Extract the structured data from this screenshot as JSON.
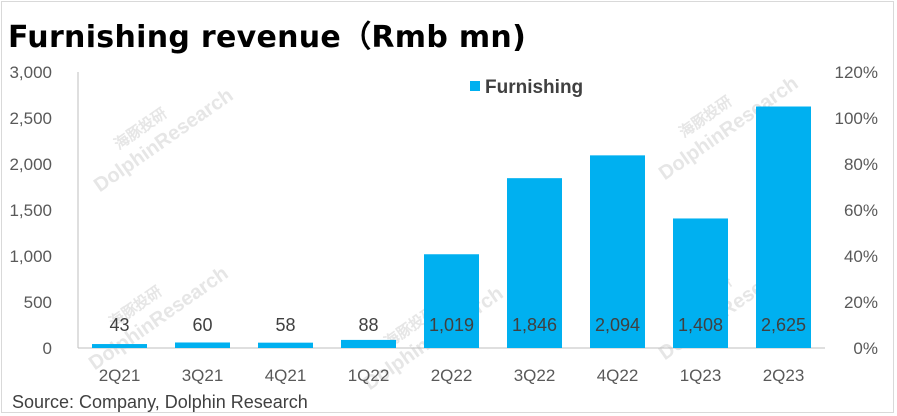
{
  "title": "Furnishing revenue（Rmb mn)",
  "source": "Source: Company, Dolphin Research",
  "watermark": {
    "cn": "海豚投研",
    "en": "DolphinResearch"
  },
  "colors": {
    "bar": "#00b0f0",
    "axis_text": "#595959",
    "label_text": "#404040"
  },
  "chart_data": {
    "type": "bar",
    "categories": [
      "2Q21",
      "3Q21",
      "4Q21",
      "1Q22",
      "2Q22",
      "3Q22",
      "4Q22",
      "1Q23",
      "2Q23"
    ],
    "series": [
      {
        "name": "Furnishing",
        "values": [
          43,
          60,
          58,
          88,
          1019,
          1846,
          2094,
          1408,
          2625
        ],
        "labels": [
          "43",
          "60",
          "58",
          "88",
          "1,019",
          "1,846",
          "2,094",
          "1,408",
          "2,625"
        ]
      }
    ],
    "ylim": [
      0,
      3000
    ],
    "yticks": [
      "0",
      "500",
      "1,000",
      "1,500",
      "2,000",
      "2,500",
      "3,000"
    ],
    "y2lim": [
      0,
      120
    ],
    "y2ticks": [
      "0%",
      "20%",
      "40%",
      "60%",
      "80%",
      "100%",
      "120%"
    ],
    "legend": "top-center",
    "grid": false
  }
}
